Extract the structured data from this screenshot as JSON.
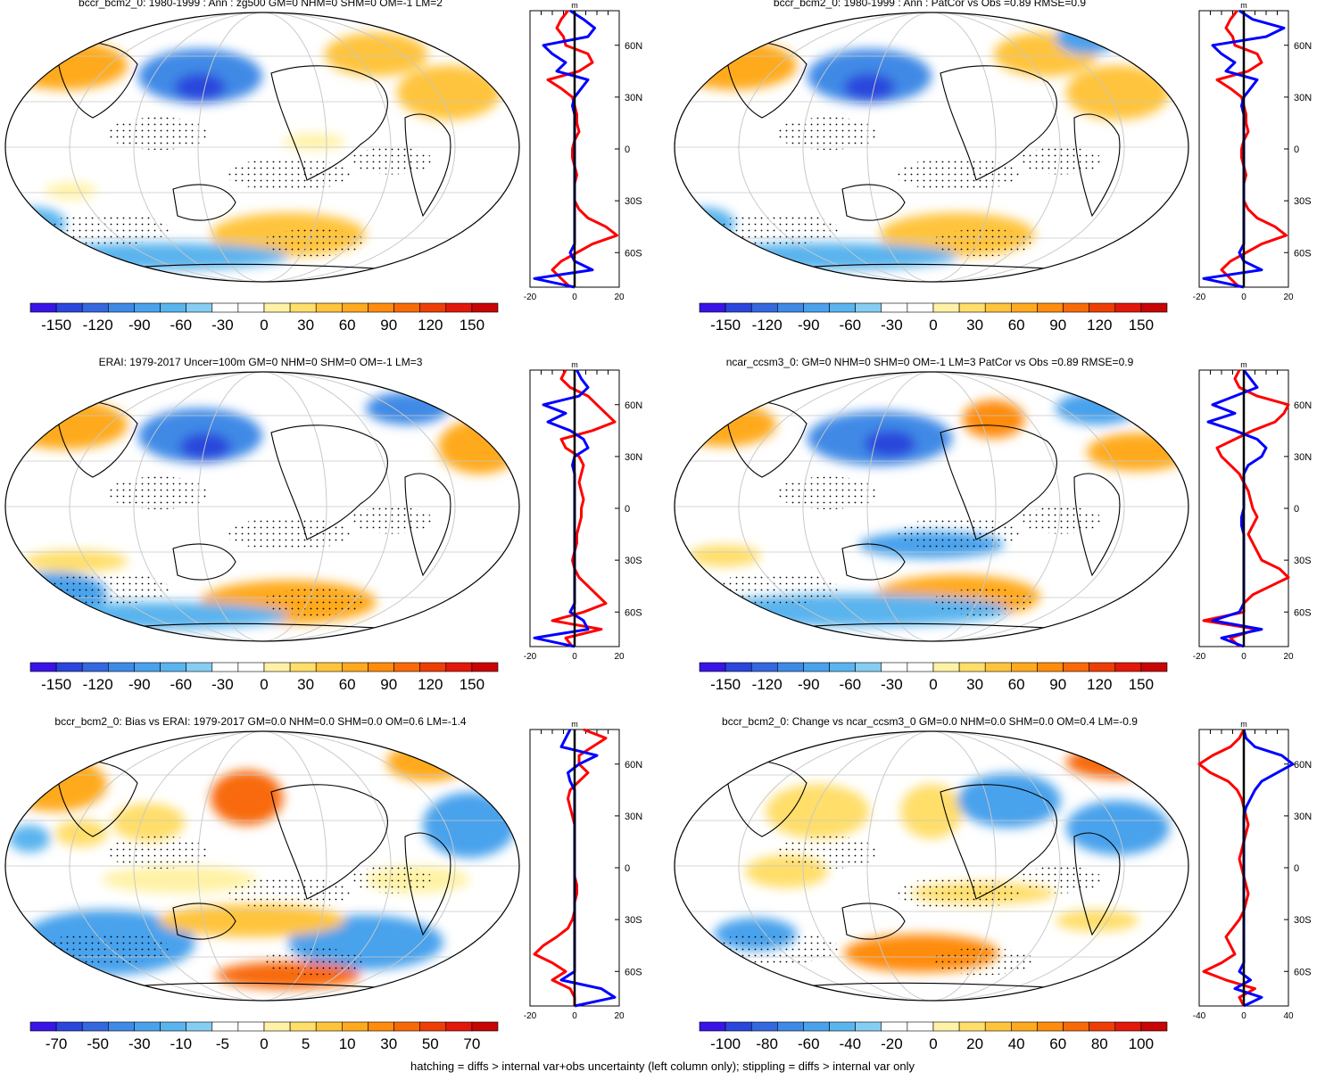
{
  "footer": "hatching = diffs > internal var+obs uncertainty (left column only); stippling = diffs > internal var only",
  "colors": {
    "palette": [
      "#3a14e6",
      "#2a46dc",
      "#3568de",
      "#3f8ae6",
      "#4aa2ec",
      "#5ab4ee",
      "#86cdf2",
      "#ffffff",
      "#ffffff",
      "#fff2a6",
      "#ffde6a",
      "#ffc43c",
      "#ffaa1e",
      "#ff8c0c",
      "#f86a08",
      "#ee3e06",
      "#e2180a",
      "#c80404"
    ],
    "model_line": "#ff0000",
    "obs_line": "#0000ff",
    "center_line": "#000000",
    "grid": "#c8c8c8"
  },
  "panels": [
    {
      "id": "p1",
      "title": "bccr_bcm2_0: 1980-1999 : Ann : zg500 GM=0 NHM=0 SHM=0 OM=-1 LM=2",
      "profile_unit": "m",
      "lat_labels": [
        "60N",
        "30N",
        "0",
        "30S",
        "60S"
      ],
      "chart_data": {
        "type": "heatmap",
        "map_projection": "robinson",
        "variable": "zg500",
        "colorbar_labels": [
          "-150",
          "-120",
          "-90",
          "-60",
          "-30",
          "0",
          "30",
          "60",
          "90",
          "120",
          "150"
        ],
        "profile": {
          "type": "line",
          "xlim": [
            -20,
            20
          ],
          "x_ticks": [
            "-20",
            "0",
            "20"
          ],
          "lat": [
            80,
            75,
            70,
            65,
            60,
            55,
            50,
            45,
            40,
            35,
            30,
            25,
            20,
            15,
            10,
            5,
            0,
            -5,
            -10,
            -15,
            -20,
            -25,
            -30,
            -35,
            -40,
            -45,
            -50,
            -55,
            -60,
            -65,
            -70,
            -75,
            -80
          ],
          "series": [
            {
              "name": "model",
              "color": "red",
              "values": [
                -3,
                -6,
                -8,
                -5,
                -4,
                6,
                8,
                2,
                -12,
                -6,
                -1,
                0,
                1,
                1,
                2,
                0,
                -1,
                -1,
                0,
                1,
                0,
                0,
                0,
                2,
                6,
                14,
                19,
                8,
                1,
                -6,
                -10,
                -6,
                -2
              ]
            },
            {
              "name": "obs",
              "color": "blue",
              "values": [
                -2,
                4,
                9,
                6,
                -14,
                -10,
                -4,
                -8,
                6,
                3,
                0,
                -1,
                0,
                0,
                0,
                0,
                0,
                0,
                0,
                0,
                0,
                0,
                0,
                0,
                0,
                0,
                0,
                0,
                -2,
                0,
                8,
                -18,
                0
              ]
            }
          ]
        }
      }
    },
    {
      "id": "p2",
      "title": "bccr_bcm2_0: 1980-1999 : Ann : PatCor vs Obs =0.89 RMSE=0.9",
      "profile_unit": "m",
      "lat_labels": [
        "60N",
        "30N",
        "0",
        "30S",
        "60S"
      ],
      "chart_data": {
        "type": "heatmap",
        "map_projection": "robinson",
        "variable": "zg500",
        "colorbar_labels": [
          "-150",
          "-120",
          "-90",
          "-60",
          "-30",
          "0",
          "30",
          "60",
          "90",
          "120",
          "150"
        ],
        "profile": {
          "type": "line",
          "xlim": [
            -20,
            20
          ],
          "x_ticks": [
            "-20",
            "0",
            "20"
          ],
          "lat": [
            80,
            75,
            70,
            65,
            60,
            55,
            50,
            45,
            40,
            35,
            30,
            25,
            20,
            15,
            10,
            5,
            0,
            -5,
            -10,
            -15,
            -20,
            -25,
            -30,
            -35,
            -40,
            -45,
            -50,
            -55,
            -60,
            -65,
            -70,
            -75,
            -80
          ],
          "series": [
            {
              "name": "model",
              "color": "red",
              "values": [
                -3,
                -6,
                -8,
                -5,
                -4,
                6,
                8,
                2,
                -12,
                -6,
                -1,
                0,
                1,
                1,
                2,
                0,
                -1,
                -1,
                0,
                1,
                0,
                0,
                0,
                2,
                6,
                14,
                19,
                8,
                1,
                -6,
                -10,
                -6,
                -2
              ]
            },
            {
              "name": "obs",
              "color": "blue",
              "values": [
                -2,
                4,
                18,
                10,
                -14,
                -10,
                -4,
                -8,
                6,
                3,
                0,
                -1,
                0,
                0,
                0,
                0,
                0,
                0,
                0,
                0,
                0,
                0,
                0,
                0,
                0,
                0,
                0,
                0,
                -2,
                0,
                8,
                -18,
                0
              ]
            }
          ]
        }
      }
    },
    {
      "id": "p3",
      "title": "ERAI: 1979-2017 Uncer=100m GM=0 NHM=0 SHM=0 OM=-1 LM=3",
      "profile_unit": "m",
      "lat_labels": [
        "60N",
        "30N",
        "0",
        "30S",
        "60S"
      ],
      "chart_data": {
        "type": "heatmap",
        "map_projection": "robinson",
        "variable": "zg500",
        "colorbar_labels": [
          "-150",
          "-120",
          "-90",
          "-60",
          "-30",
          "0",
          "30",
          "60",
          "90",
          "120",
          "150"
        ],
        "profile": {
          "type": "line",
          "xlim": [
            -20,
            20
          ],
          "x_ticks": [
            "-20",
            "0",
            "20"
          ],
          "lat": [
            80,
            75,
            70,
            65,
            60,
            55,
            50,
            45,
            40,
            35,
            30,
            25,
            20,
            15,
            10,
            5,
            0,
            -5,
            -10,
            -15,
            -20,
            -25,
            -30,
            -35,
            -40,
            -45,
            -50,
            -55,
            -60,
            -65,
            -70,
            -75,
            -80
          ],
          "series": [
            {
              "name": "model",
              "color": "red",
              "values": [
                -4,
                -6,
                -2,
                6,
                10,
                14,
                18,
                8,
                -6,
                -4,
                2,
                4,
                3,
                2,
                3,
                4,
                3,
                3,
                2,
                1,
                1,
                0,
                -1,
                0,
                2,
                6,
                10,
                14,
                4,
                -10,
                12,
                -4,
                -1
              ]
            },
            {
              "name": "obs",
              "color": "blue",
              "values": [
                1,
                3,
                6,
                2,
                -14,
                -4,
                -12,
                -2,
                4,
                6,
                0,
                -1,
                0,
                0,
                0,
                0,
                0,
                0,
                0,
                0,
                0,
                0,
                0,
                0,
                0,
                0,
                0,
                0,
                -2,
                4,
                6,
                -18,
                0
              ]
            }
          ]
        }
      }
    },
    {
      "id": "p4",
      "title": "ncar_ccsm3_0: GM=0 NHM=0 SHM=0 OM=-1 LM=3 PatCor vs Obs =0.89 RMSE=0.9",
      "profile_unit": "m",
      "lat_labels": [
        "60N",
        "30N",
        "0",
        "30S",
        "60S"
      ],
      "chart_data": {
        "type": "heatmap",
        "map_projection": "robinson",
        "variable": "zg500",
        "colorbar_labels": [
          "-150",
          "-120",
          "-90",
          "-60",
          "-30",
          "0",
          "30",
          "60",
          "90",
          "120",
          "150"
        ],
        "profile": {
          "type": "line",
          "xlim": [
            -20,
            20
          ],
          "x_ticks": [
            "-20",
            "0",
            "20"
          ],
          "lat": [
            80,
            75,
            70,
            65,
            60,
            55,
            50,
            45,
            40,
            35,
            30,
            25,
            20,
            15,
            10,
            5,
            0,
            -5,
            -10,
            -15,
            -20,
            -25,
            -30,
            -35,
            -40,
            -45,
            -50,
            -55,
            -60,
            -65,
            -70,
            -75,
            -80
          ],
          "series": [
            {
              "name": "model",
              "color": "red",
              "values": [
                -2,
                -4,
                -2,
                6,
                20,
                18,
                14,
                4,
                -4,
                -12,
                -10,
                -6,
                -2,
                0,
                2,
                3,
                4,
                6,
                4,
                2,
                4,
                6,
                8,
                16,
                20,
                12,
                4,
                0,
                0,
                -18,
                6,
                -6,
                -2
              ]
            },
            {
              "name": "obs",
              "color": "blue",
              "values": [
                0,
                3,
                6,
                -4,
                -14,
                -4,
                -16,
                -4,
                6,
                10,
                8,
                2,
                0,
                0,
                0,
                0,
                0,
                -1,
                -1,
                0,
                0,
                0,
                0,
                0,
                0,
                0,
                0,
                0,
                -2,
                -14,
                8,
                -10,
                0
              ]
            }
          ]
        }
      }
    },
    {
      "id": "p5",
      "title": "bccr_bcm2_0: Bias vs ERAI: 1979-2017 GM=0.0 NHM=0.0 SHM=0.0 OM=0.6 LM=-1.4",
      "profile_unit": "m",
      "lat_labels": [
        "60N",
        "30N",
        "0",
        "30S",
        "60S"
      ],
      "chart_data": {
        "type": "heatmap",
        "map_projection": "robinson",
        "variable": "zg500 bias",
        "colorbar_labels": [
          "-70",
          "-50",
          "-30",
          "-10",
          "-5",
          "0",
          "5",
          "10",
          "30",
          "50",
          "70"
        ],
        "profile": {
          "type": "line",
          "xlim": [
            -20,
            20
          ],
          "x_ticks": [
            "-20",
            "0",
            "20"
          ],
          "lat": [
            80,
            75,
            70,
            65,
            60,
            55,
            50,
            45,
            40,
            35,
            30,
            25,
            20,
            15,
            10,
            5,
            0,
            -5,
            -10,
            -15,
            -20,
            -25,
            -30,
            -35,
            -40,
            -45,
            -50,
            -55,
            -60,
            -65,
            -70,
            -75,
            -80
          ],
          "series": [
            {
              "name": "model",
              "color": "red",
              "values": [
                4,
                14,
                8,
                2,
                2,
                6,
                2,
                -2,
                -3,
                -2,
                -1,
                0,
                0,
                0,
                0,
                0,
                0,
                0,
                1,
                1,
                0,
                0,
                -1,
                -3,
                -8,
                -14,
                -18,
                -10,
                -4,
                -10,
                -2,
                0,
                0
              ]
            },
            {
              "name": "obs",
              "color": "blue",
              "values": [
                -2,
                -4,
                -6,
                10,
                2,
                -3,
                -2,
                0,
                0,
                0,
                0,
                0,
                0,
                0,
                0,
                0,
                0,
                0,
                0,
                0,
                0,
                0,
                0,
                0,
                0,
                0,
                0,
                0,
                0,
                -6,
                12,
                18,
                0
              ]
            }
          ]
        }
      }
    },
    {
      "id": "p6",
      "title": "bccr_bcm2_0: Change vs ncar_ccsm3_0 GM=0.0 NHM=0.0 SHM=0.0 OM=0.4 LM=-0.9",
      "profile_unit": "m",
      "lat_labels": [
        "60N",
        "30N",
        "0",
        "30S",
        "60S"
      ],
      "chart_data": {
        "type": "heatmap",
        "map_projection": "robinson",
        "variable": "zg500 change",
        "colorbar_labels": [
          "-100",
          "-80",
          "-60",
          "-40",
          "-20",
          "0",
          "20",
          "40",
          "60",
          "80",
          "100"
        ],
        "profile": {
          "type": "line",
          "xlim": [
            -40,
            40
          ],
          "x_ticks": [
            "-40",
            "0",
            "40"
          ],
          "lat": [
            80,
            75,
            70,
            65,
            60,
            55,
            50,
            45,
            40,
            35,
            30,
            25,
            20,
            15,
            10,
            5,
            0,
            -5,
            -10,
            -15,
            -20,
            -25,
            -30,
            -35,
            -40,
            -45,
            -50,
            -55,
            -60,
            -65,
            -70,
            -75,
            -80
          ],
          "series": [
            {
              "name": "model",
              "color": "red",
              "values": [
                0,
                -4,
                -12,
                -28,
                -40,
                -30,
                -14,
                -6,
                -2,
                0,
                2,
                4,
                2,
                0,
                -2,
                -4,
                -2,
                0,
                2,
                4,
                2,
                0,
                -4,
                -10,
                -16,
                -12,
                -8,
                -20,
                -36,
                -16,
                10,
                -4,
                0
              ]
            },
            {
              "name": "obs",
              "color": "blue",
              "values": [
                0,
                2,
                10,
                34,
                44,
                30,
                16,
                10,
                6,
                2,
                0,
                0,
                0,
                0,
                0,
                0,
                0,
                0,
                0,
                0,
                0,
                0,
                0,
                0,
                0,
                0,
                0,
                0,
                -4,
                6,
                -8,
                16,
                0
              ]
            }
          ]
        }
      }
    }
  ]
}
